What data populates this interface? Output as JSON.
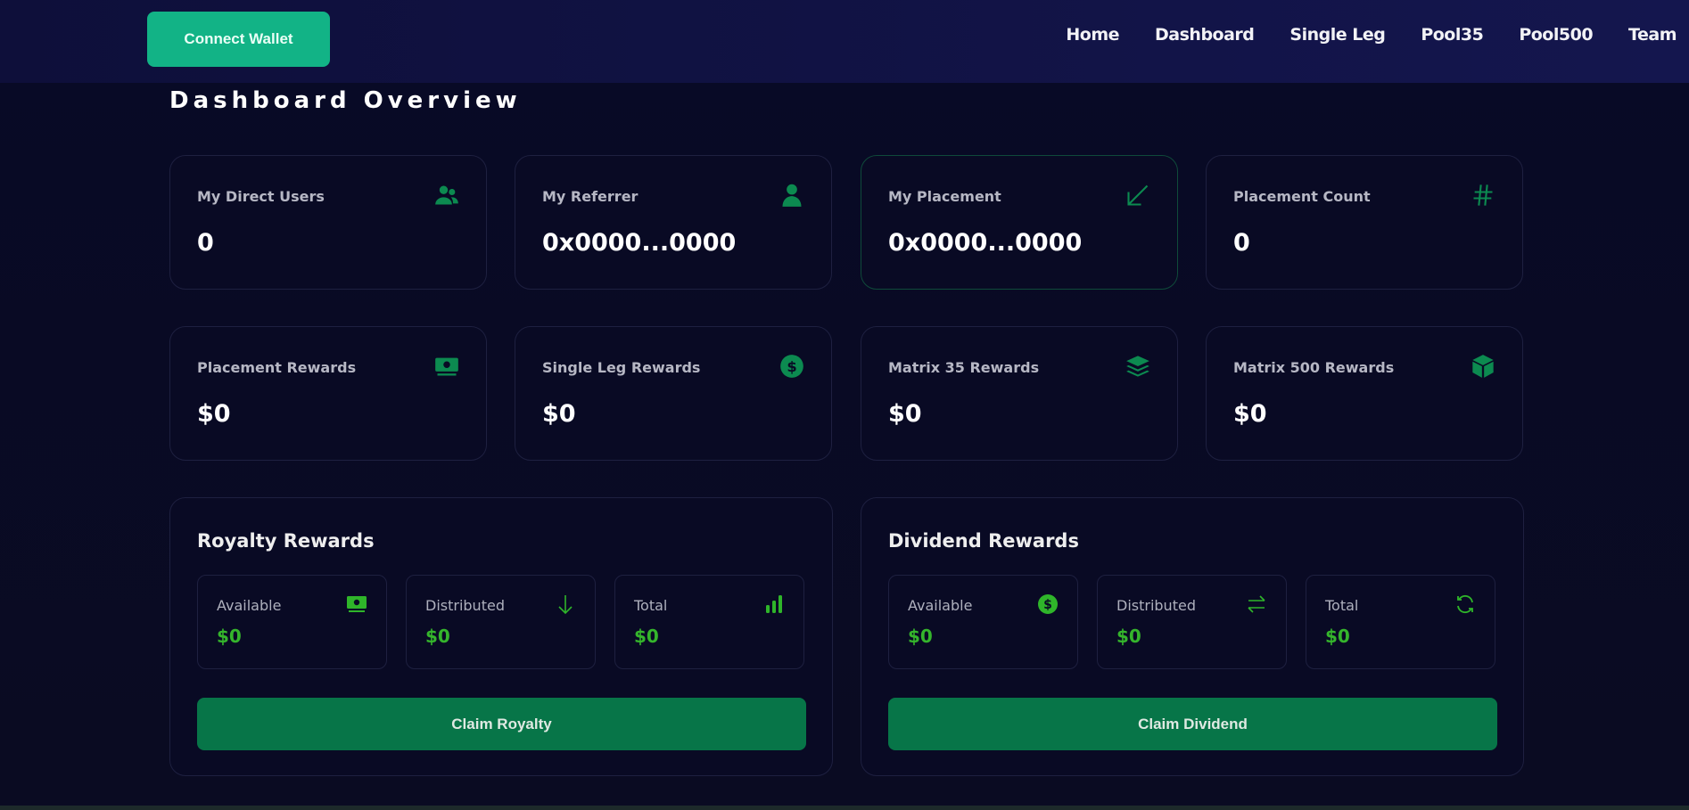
{
  "header": {
    "connect_label": "Connect Wallet",
    "nav": [
      "Home",
      "Dashboard",
      "Single Leg",
      "Pool35",
      "Pool500",
      "Team"
    ]
  },
  "page_title": "Dashboard Overview",
  "stats": [
    {
      "label": "My Direct Users",
      "value": "0",
      "icon": "users-icon"
    },
    {
      "label": "My Referrer",
      "value": "0x0000...0000",
      "icon": "user-icon"
    },
    {
      "label": "My Placement",
      "value": "0x0000...0000",
      "icon": "arrow-down-left-icon"
    },
    {
      "label": "Placement Count",
      "value": "0",
      "icon": "hash-icon"
    },
    {
      "label": "Placement Rewards",
      "value": "$0",
      "icon": "money-bill-icon"
    },
    {
      "label": "Single Leg Rewards",
      "value": "$0",
      "icon": "dollar-circle-icon"
    },
    {
      "label": "Matrix 35 Rewards",
      "value": "$0",
      "icon": "layers-icon"
    },
    {
      "label": "Matrix 500 Rewards",
      "value": "$0",
      "icon": "cube-icon"
    }
  ],
  "royalty": {
    "title": "Royalty Rewards",
    "items": [
      {
        "label": "Available",
        "value": "$0",
        "icon": "money-bill-icon"
      },
      {
        "label": "Distributed",
        "value": "$0",
        "icon": "arrow-down-icon"
      },
      {
        "label": "Total",
        "value": "$0",
        "icon": "bar-chart-icon"
      }
    ],
    "button": "Claim Royalty"
  },
  "dividend": {
    "title": "Dividend Rewards",
    "items": [
      {
        "label": "Available",
        "value": "$0",
        "icon": "dollar-circle-icon"
      },
      {
        "label": "Distributed",
        "value": "$0",
        "icon": "exchange-icon"
      },
      {
        "label": "Total",
        "value": "$0",
        "icon": "refresh-icon"
      }
    ],
    "button": "Claim Dividend"
  },
  "colors": {
    "accent": "#12b386",
    "icon_green": "#0c8a50",
    "value_green": "#35b52c",
    "button": "#077548",
    "bg": "#090a24"
  }
}
